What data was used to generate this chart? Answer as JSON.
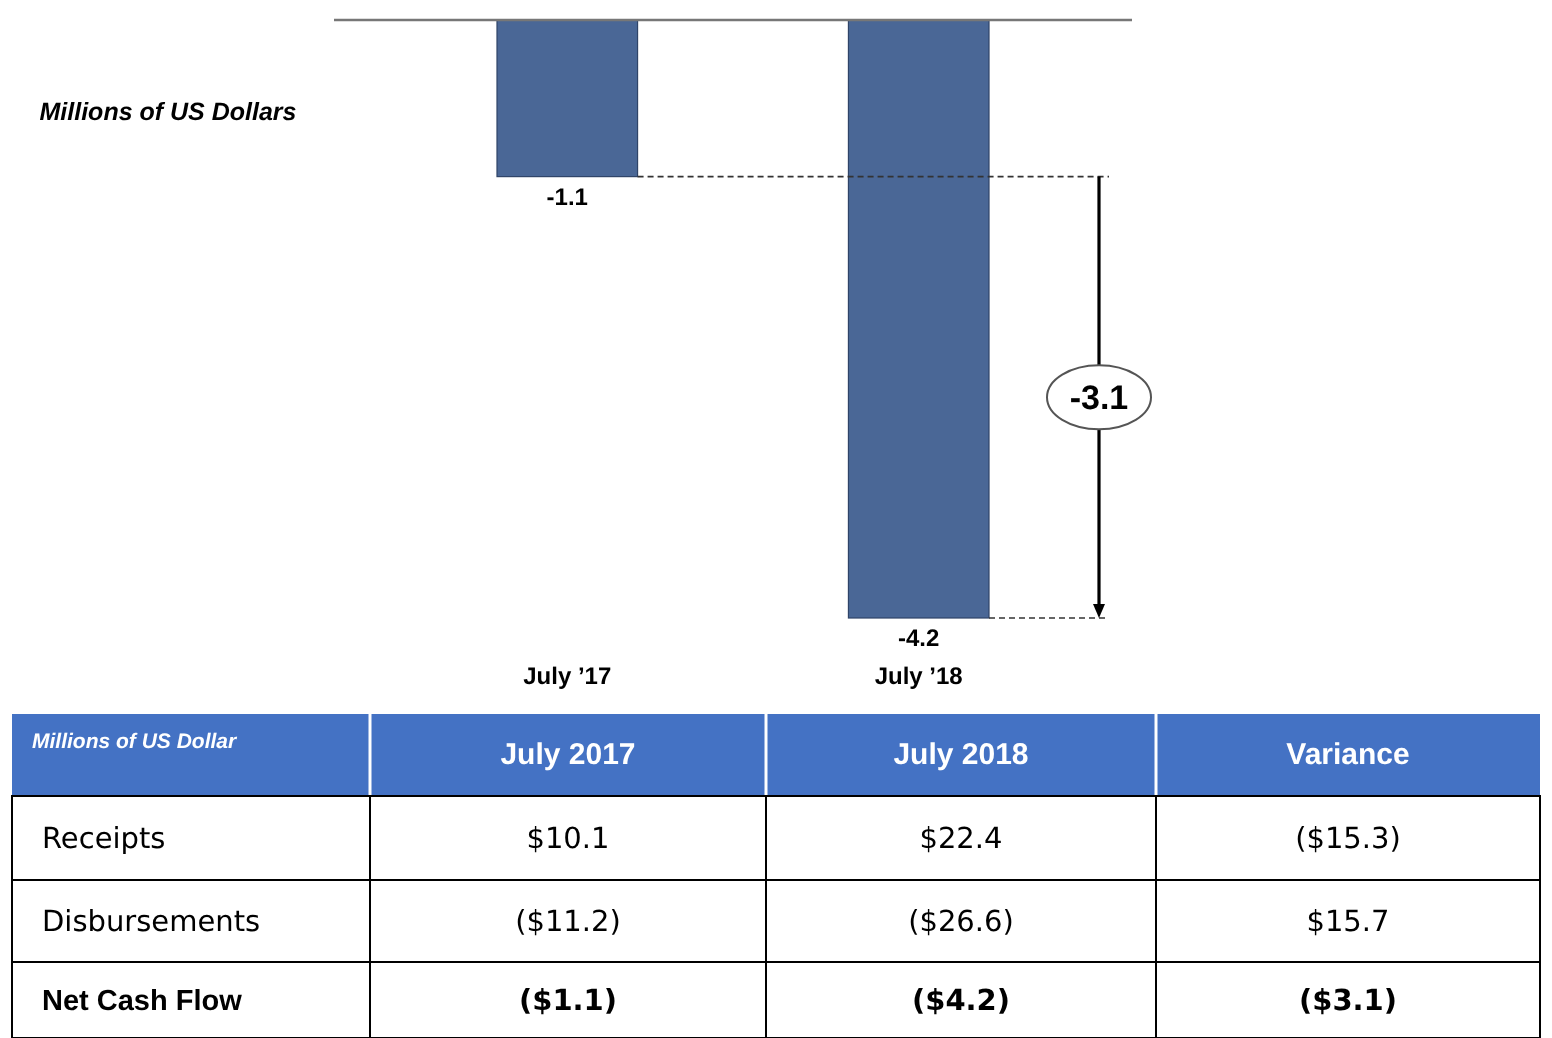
{
  "chart_data": [
    {
      "type": "bar",
      "ylabel": "Millions of US Dollars",
      "categories": [
        "July ’17",
        "July ’18"
      ],
      "values": [
        -1.1,
        -4.2
      ],
      "color": "#4a6796",
      "tick_labels": "x",
      "data_labels": true,
      "ref_lines": [
        {
          "axis": "y",
          "value": -1.1,
          "line_style": "dashed",
          "color": "#333333"
        },
        {
          "axis": "y",
          "value": -4.2,
          "line_style": "dashed",
          "color": "#333333"
        }
      ],
      "annotations": [
        "-3.1"
      ]
    },
    {
      "type": "other",
      "title": "Millions of US Dollar",
      "color": "#4472c4",
      "categories": [
        "July 2017",
        "July 2018",
        "Variance"
      ],
      "y_categories": [
        "Receipts",
        "Disbursements",
        "Net Cash Flow"
      ],
      "cell_labels": [
        [
          "$10.1",
          "$22.4",
          "($15.3)"
        ],
        [
          "($11.2)",
          "($26.6)",
          "$15.7"
        ],
        [
          "($1.1)",
          "($4.2)",
          "($3.1)"
        ]
      ]
    }
  ]
}
